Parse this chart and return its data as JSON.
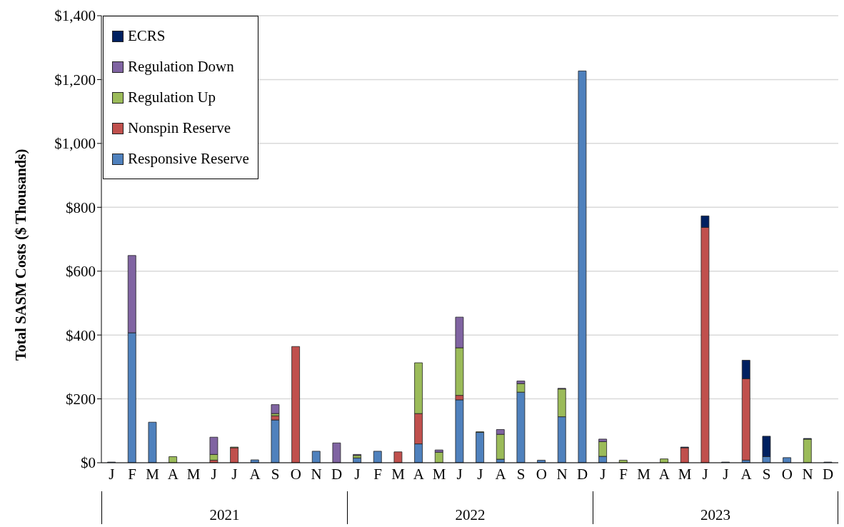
{
  "chart_data": {
    "type": "bar",
    "stacked": true,
    "ylabel": "Total SASM Costs ($ Thousands)",
    "categories": [
      "J",
      "F",
      "M",
      "A",
      "M",
      "J",
      "J",
      "A",
      "S",
      "O",
      "N",
      "D",
      "J",
      "F",
      "M",
      "A",
      "M",
      "J",
      "J",
      "A",
      "S",
      "O",
      "N",
      "D",
      "J",
      "F",
      "M",
      "A",
      "M",
      "J",
      "J",
      "A",
      "S",
      "O",
      "N",
      "D"
    ],
    "series": [
      {
        "name": "Responsive Reserve",
        "color": "#4f81bd",
        "values": [
          2,
          407,
          127,
          0,
          0,
          0,
          0,
          9,
          134,
          0,
          36,
          0,
          15,
          36,
          0,
          59,
          0,
          197,
          95,
          11,
          221,
          8,
          144,
          1227,
          20,
          0,
          0,
          0,
          0,
          0,
          2,
          8,
          19,
          16,
          0,
          2
        ]
      },
      {
        "name": "Nonspin Reserve",
        "color": "#c0504d",
        "values": [
          0,
          0,
          0,
          0,
          0,
          8,
          47,
          0,
          13,
          364,
          0,
          0,
          0,
          0,
          34,
          95,
          0,
          14,
          0,
          0,
          0,
          0,
          0,
          0,
          0,
          0,
          0,
          0,
          47,
          737,
          0,
          255,
          0,
          0,
          0,
          0
        ]
      },
      {
        "name": "Regulation Up",
        "color": "#9bbb59",
        "values": [
          0,
          0,
          0,
          19,
          0,
          18,
          2,
          0,
          7,
          0,
          0,
          0,
          8,
          0,
          0,
          159,
          33,
          149,
          2,
          78,
          27,
          0,
          87,
          0,
          46,
          8,
          0,
          12,
          0,
          0,
          0,
          0,
          0,
          0,
          74,
          0
        ]
      },
      {
        "name": "Regulation Down",
        "color": "#8064a2",
        "values": [
          0,
          242,
          0,
          0,
          0,
          54,
          0,
          0,
          28,
          0,
          0,
          62,
          3,
          0,
          0,
          0,
          7,
          96,
          0,
          15,
          8,
          0,
          2,
          0,
          8,
          0,
          0,
          0,
          0,
          0,
          0,
          0,
          0,
          0,
          0,
          0
        ]
      },
      {
        "name": "ECRS",
        "color": "#002060",
        "values": [
          0,
          0,
          0,
          0,
          0,
          0,
          0,
          0,
          0,
          0,
          0,
          0,
          0,
          0,
          0,
          0,
          0,
          0,
          0,
          0,
          0,
          0,
          0,
          0,
          0,
          0,
          0,
          0,
          2,
          36,
          0,
          58,
          64,
          0,
          2,
          0
        ]
      }
    ],
    "ylim": [
      0,
      1400
    ],
    "yticks": [
      {
        "value": 0,
        "label": "$0"
      },
      {
        "value": 200,
        "label": "$200"
      },
      {
        "value": 400,
        "label": "$400"
      },
      {
        "value": 600,
        "label": "$600"
      },
      {
        "value": 800,
        "label": "$800"
      },
      {
        "value": 1000,
        "label": "$1,000"
      },
      {
        "value": 1200,
        "label": "$1,200"
      },
      {
        "value": 1400,
        "label": "$1,400"
      }
    ],
    "grid": "y",
    "legend": "top left",
    "annotations": [
      "2021",
      "2022",
      "2023"
    ]
  }
}
